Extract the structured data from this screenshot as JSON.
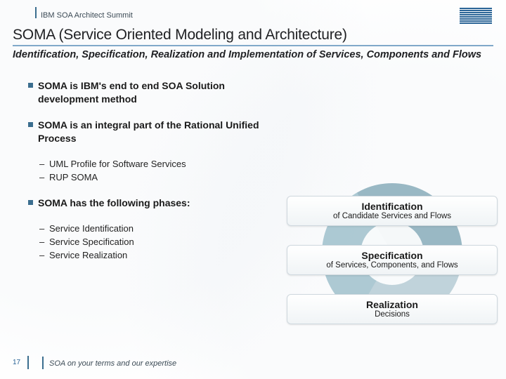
{
  "header": {
    "summit": "IBM SOA Architect Summit"
  },
  "title": {
    "main": "SOMA (Service Oriented Modeling and Architecture)",
    "sub": "Identification, Specification, Realization and Implementation of Services, Components and Flows"
  },
  "bullets": {
    "b0": "SOMA is IBM's end to end SOA Solution development method",
    "b1": "SOMA is an integral part of the Rational Unified Process",
    "b1_s0": "UML Profile for Software Services",
    "b1_s1": "RUP SOMA",
    "b2": "SOMA has the following phases:",
    "b2_s0": "Service Identification",
    "b2_s1": "Service Specification",
    "b2_s2": "Service Realization"
  },
  "phases": {
    "p1_title": "Identification",
    "p1_sub": "of Candidate Services and Flows",
    "p2_title": "Specification",
    "p2_sub": "of Services, Components, and Flows",
    "p3_title": "Realization",
    "p3_sub": "Decisions"
  },
  "footer": {
    "page": "17",
    "tagline": "SOA on your terms and our expertise"
  },
  "colors": {
    "accent": "#3b6e8f",
    "rule": "#7fa8c9",
    "ibm": "#2a6496"
  }
}
